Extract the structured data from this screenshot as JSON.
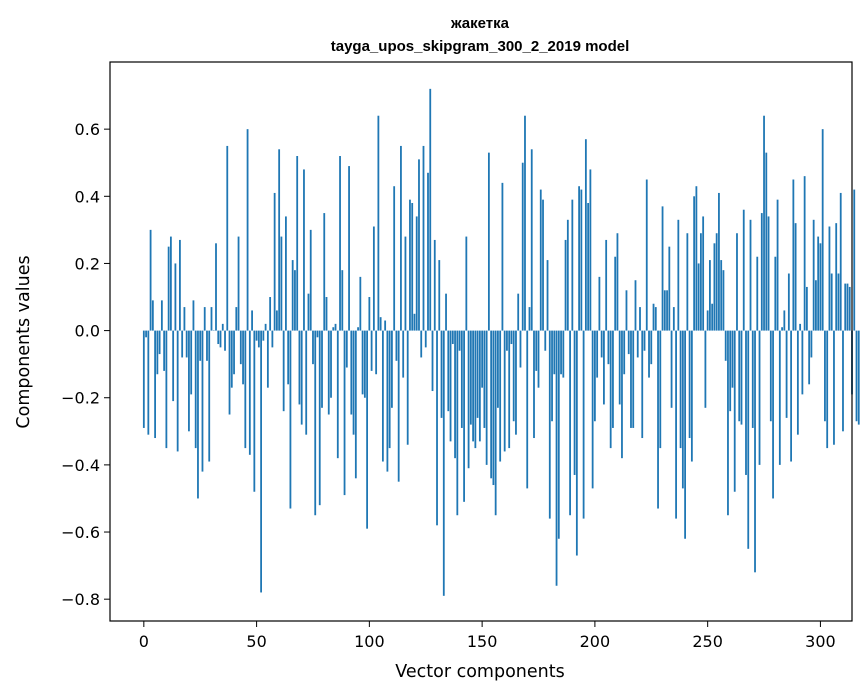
{
  "chart_data": {
    "type": "bar",
    "title": "жакетка",
    "subtitle": "tayga_upos_skipgram_300_2_2019 model",
    "xlabel": "Vector components",
    "ylabel": "Components values",
    "xlim": [
      -15,
      314
    ],
    "ylim": [
      -0.865,
      0.8
    ],
    "xticks": [
      0,
      50,
      100,
      150,
      200,
      250,
      300
    ],
    "yticks": [
      -0.8,
      -0.6,
      -0.4,
      -0.2,
      0.0,
      0.2,
      0.4,
      0.6
    ],
    "ytick_labels": [
      "−0.8",
      "−0.6",
      "−0.4",
      "−0.2",
      "0.0",
      "0.2",
      "0.4",
      "0.6"
    ],
    "grid": false,
    "bar_color": "#1f77b4",
    "x_start": 0,
    "values": [
      -0.29,
      -0.02,
      -0.31,
      0.3,
      0.09,
      -0.32,
      -0.13,
      -0.07,
      0.09,
      -0.12,
      -0.35,
      0.25,
      0.28,
      -0.21,
      0.2,
      -0.36,
      0.27,
      -0.08,
      0.07,
      -0.08,
      -0.3,
      -0.19,
      0.09,
      -0.35,
      -0.5,
      -0.09,
      -0.42,
      0.07,
      -0.09,
      -0.39,
      0.07,
      0.0,
      0.26,
      -0.04,
      -0.05,
      0.02,
      -0.06,
      0.55,
      -0.25,
      -0.17,
      -0.13,
      0.07,
      0.28,
      -0.1,
      -0.16,
      -0.35,
      0.6,
      -0.37,
      0.06,
      -0.48,
      -0.03,
      -0.05,
      -0.78,
      -0.03,
      0.02,
      -0.17,
      0.1,
      -0.05,
      0.41,
      0.06,
      0.54,
      0.28,
      -0.24,
      0.34,
      -0.16,
      -0.53,
      0.21,
      0.18,
      0.52,
      -0.22,
      -0.28,
      0.48,
      -0.31,
      0.11,
      0.3,
      -0.1,
      -0.55,
      -0.02,
      -0.52,
      -0.23,
      0.35,
      0.1,
      -0.25,
      -0.2,
      0.01,
      0.02,
      -0.38,
      0.52,
      0.18,
      -0.49,
      -0.11,
      0.49,
      -0.25,
      -0.31,
      -0.44,
      0.01,
      0.16,
      -0.19,
      -0.2,
      -0.59,
      0.1,
      -0.12,
      0.31,
      -0.13,
      0.64,
      0.04,
      -0.39,
      0.03,
      -0.42,
      -0.35,
      -0.23,
      0.43,
      -0.09,
      -0.45,
      0.55,
      -0.14,
      0.28,
      -0.34,
      0.39,
      0.38,
      0.05,
      0.34,
      0.51,
      -0.08,
      0.55,
      -0.05,
      0.47,
      0.72,
      -0.18,
      0.27,
      -0.58,
      0.21,
      -0.26,
      -0.79,
      0.11,
      -0.24,
      -0.33,
      -0.04,
      -0.38,
      -0.55,
      -0.06,
      -0.29,
      -0.51,
      0.28,
      -0.41,
      -0.28,
      -0.33,
      -0.35,
      -0.26,
      -0.33,
      -0.17,
      -0.29,
      -0.4,
      0.53,
      -0.44,
      -0.46,
      -0.55,
      -0.23,
      -0.39,
      0.44,
      -0.36,
      -0.06,
      -0.35,
      -0.04,
      -0.27,
      -0.31,
      0.11,
      -0.11,
      0.5,
      0.64,
      -0.47,
      0.07,
      0.54,
      -0.32,
      -0.12,
      -0.17,
      0.42,
      0.39,
      -0.06,
      0.21,
      -0.56,
      -0.27,
      -0.13,
      -0.76,
      -0.62,
      -0.13,
      -0.14,
      0.27,
      0.33,
      -0.55,
      0.39,
      -0.43,
      -0.67,
      0.43,
      0.42,
      -0.56,
      0.57,
      0.38,
      0.48,
      -0.47,
      -0.27,
      -0.14,
      0.16,
      -0.08,
      -0.22,
      0.27,
      -0.1,
      -0.35,
      -0.29,
      0.22,
      0.29,
      -0.22,
      -0.38,
      -0.13,
      0.12,
      -0.07,
      -0.29,
      -0.29,
      0.15,
      -0.08,
      0.07,
      -0.32,
      -0.06,
      0.45,
      -0.14,
      -0.1,
      0.08,
      0.07,
      -0.53,
      -0.35,
      0.37,
      0.12,
      0.12,
      0.25,
      -0.23,
      0.07,
      -0.56,
      0.33,
      -0.35,
      -0.47,
      -0.62,
      0.29,
      -0.32,
      -0.39,
      0.4,
      0.43,
      0.2,
      0.29,
      0.34,
      -0.23,
      0.06,
      0.21,
      0.08,
      0.26,
      0.29,
      0.41,
      0.21,
      0.18,
      -0.09,
      -0.55,
      -0.24,
      -0.17,
      -0.48,
      0.29,
      -0.27,
      -0.28,
      0.36,
      -0.43,
      -0.65,
      0.33,
      -0.29,
      -0.72,
      0.22,
      -0.4,
      0.35,
      0.64,
      0.53,
      0.34,
      -0.27,
      -0.5,
      0.22,
      0.39,
      -0.4,
      0.01,
      0.06,
      -0.26,
      0.17,
      -0.39,
      0.45,
      0.32,
      -0.31,
      0.02,
      -0.19,
      0.46,
      0.13,
      -0.16,
      -0.08,
      0.33,
      0.15,
      0.28,
      0.26,
      0.6,
      -0.27,
      -0.35,
      0.31,
      0.17,
      -0.34,
      0.32,
      0.17,
      0.41,
      -0.3,
      0.14,
      0.14,
      0.13,
      -0.19,
      0.42,
      -0.27,
      -0.28
    ]
  }
}
